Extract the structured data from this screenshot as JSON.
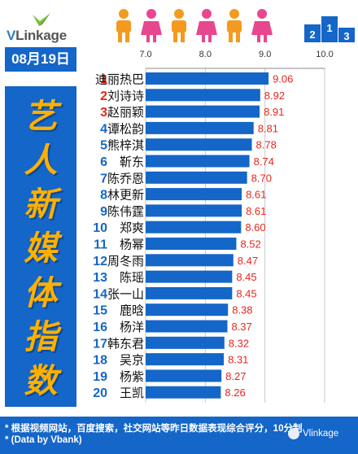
{
  "brand": {
    "logo_text_v": "V",
    "logo_text_rest": "Linkage"
  },
  "date": "08月19日",
  "title_chars": [
    "艺",
    "人",
    "新",
    "媒",
    "体",
    "指",
    "数"
  ],
  "footer": {
    "note_line1": "* 根据视频网站，百度搜索，社交网站等昨日数据表现综合评分，10分制",
    "note_line2": "* (Data by Vbank)",
    "watermark": "Vlinkage"
  },
  "colors": {
    "primary_blue": "#1466c8",
    "bar_blue": "#1466c8",
    "rank_top3_red": "#e8261c",
    "rank_blue": "#1466c8",
    "value_red": "#e8261c",
    "title_orange": "#ffb000",
    "people_orange": "#f39a1f",
    "people_pink": "#e8478f"
  },
  "icons": {
    "logo": "vlinkage-logo-icon",
    "people": "people-row-icon",
    "podium": "podium-123-icon",
    "wechat": "wechat-icon"
  },
  "chart_data": {
    "type": "bar",
    "orientation": "horizontal",
    "xlim": [
      7.0,
      10.0
    ],
    "xticks": [
      "7.0",
      "8.0",
      "9.0",
      "10.0"
    ],
    "grid": true,
    "categories": [
      "迪丽热巴",
      "刘诗诗",
      "赵丽颖",
      "谭松韵",
      "熊梓淇",
      "靳东",
      "陈乔恩",
      "林更新",
      "陈伟霆",
      "郑爽",
      "杨幂",
      "周冬雨",
      "陈瑶",
      "张一山",
      "鹿晗",
      "杨洋",
      "韩东君",
      "吴京",
      "杨紫",
      "王凯"
    ],
    "ranks": [
      "1",
      "2",
      "3",
      "4",
      "5",
      "6",
      "7",
      "8",
      "9",
      "10",
      "11",
      "12",
      "13",
      "14",
      "15",
      "16",
      "17",
      "18",
      "19",
      "20"
    ],
    "values": [
      9.06,
      8.92,
      8.91,
      8.81,
      8.78,
      8.74,
      8.7,
      8.61,
      8.61,
      8.6,
      8.52,
      8.47,
      8.45,
      8.45,
      8.38,
      8.37,
      8.32,
      8.31,
      8.27,
      8.26
    ],
    "value_labels": [
      "9.06",
      "8.92",
      "8.91",
      "8.81",
      "8.78",
      "8.74",
      "8.70",
      "8.61",
      "8.61",
      "8.60",
      "8.52",
      "8.47",
      "8.45",
      "8.45",
      "8.38",
      "8.37",
      "8.32",
      "8.31",
      "8.27",
      "8.26"
    ]
  }
}
